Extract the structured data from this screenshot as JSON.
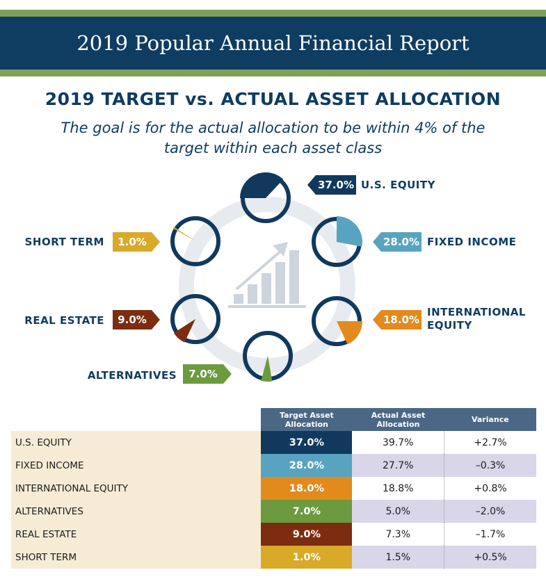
{
  "header": {
    "title": "2019 Popular Annual Financial Report"
  },
  "heading": {
    "title": "2019 TARGET vs. ACTUAL ASSET ALLOCATION",
    "subtitle_line1": "The goal is for the actual allocation to be within 4% of the",
    "subtitle_line2": "target within each asset class"
  },
  "colors": {
    "navy": "#0f3c61",
    "green_band": "#7ea15a",
    "table_header": "#4a6786",
    "us_equity": "#10395d",
    "fixed_income": "#58a4c0",
    "international_equity": "#e38a1d",
    "alternatives": "#6c9a3e",
    "real_estate": "#7c2d10",
    "short_term": "#d9a92a"
  },
  "chart_data": {
    "type": "pie",
    "title": "2019 TARGET vs. ACTUAL ASSET ALLOCATION",
    "series": [
      {
        "name": "U.S. EQUITY",
        "label_lines": [
          "U.S. EQUITY"
        ],
        "value": 37.0,
        "display": "37.0%",
        "color": "#10395d"
      },
      {
        "name": "FIXED INCOME",
        "label_lines": [
          "FIXED INCOME"
        ],
        "value": 28.0,
        "display": "28.0%",
        "color": "#58a4c0"
      },
      {
        "name": "INTERNATIONAL EQUITY",
        "label_lines": [
          "INTERNATIONAL",
          "EQUITY"
        ],
        "value": 18.0,
        "display": "18.0%",
        "color": "#e38a1d"
      },
      {
        "name": "ALTERNATIVES",
        "label_lines": [
          "ALTERNATIVES"
        ],
        "value": 7.0,
        "display": "7.0%",
        "color": "#6c9a3e"
      },
      {
        "name": "REAL ESTATE",
        "label_lines": [
          "REAL ESTATE"
        ],
        "value": 9.0,
        "display": "9.0%",
        "color": "#7c2d10"
      },
      {
        "name": "SHORT TERM",
        "label_lines": [
          "SHORT TERM"
        ],
        "value": 1.0,
        "display": "1.0%",
        "color": "#d9a92a"
      }
    ]
  },
  "table": {
    "headers": [
      "",
      "Target Asset Allocation",
      "Actual Asset Allocation",
      "Variance"
    ],
    "rows": [
      {
        "name": "U.S. EQUITY",
        "target": "37.0%",
        "actual": "39.7%",
        "variance": "+2.7%",
        "color": "#10395d"
      },
      {
        "name": "FIXED INCOME",
        "target": "28.0%",
        "actual": "27.7%",
        "variance": "–0.3%",
        "color": "#58a4c0"
      },
      {
        "name": "INTERNATIONAL EQUITY",
        "target": "18.0%",
        "actual": "18.8%",
        "variance": "+0.8%",
        "color": "#e38a1d"
      },
      {
        "name": "ALTERNATIVES",
        "target": "7.0%",
        "actual": "5.0%",
        "variance": "–2.0%",
        "color": "#6c9a3e"
      },
      {
        "name": "REAL ESTATE",
        "target": "9.0%",
        "actual": "7.3%",
        "variance": "–1.7%",
        "color": "#7c2d10"
      },
      {
        "name": "SHORT TERM",
        "target": "1.0%",
        "actual": "1.5%",
        "variance": "+0.5%",
        "color": "#d9a92a"
      }
    ]
  }
}
